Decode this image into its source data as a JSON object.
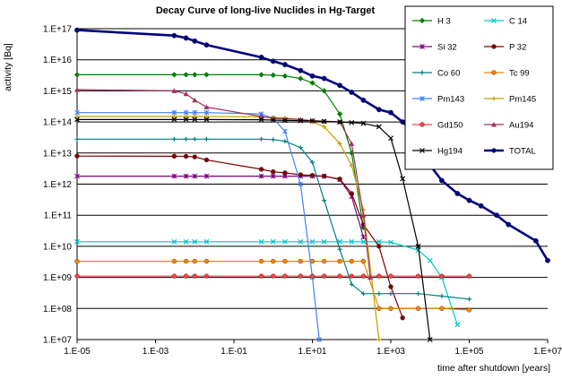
{
  "chart_data": {
    "type": "line",
    "title": "Decay Curve of long-live Nuclides in Hg-Target",
    "xlabel": "time after shutdown [years]",
    "ylabel": "activity [Bq]",
    "x_scale": "log",
    "y_scale": "log",
    "xlim": [
      1e-05,
      10000000.0
    ],
    "ylim": [
      10000000.0,
      1e+17
    ],
    "x_tick_labels": [
      "1.E-05",
      "1.E-03",
      "1.E-01",
      "1.E+01",
      "1.E+03",
      "1.E+05",
      "1.E+07"
    ],
    "y_tick_labels": [
      "1.E+07",
      "1.E+08",
      "1.E+09",
      "1.E+10",
      "1.E+11",
      "1.E+12",
      "1.E+13",
      "1.E+14",
      "1.E+15",
      "1.E+16",
      "1.E+17"
    ],
    "grid": "horizontal",
    "legend_position": "top-right",
    "series": [
      {
        "name": "H  3",
        "color": "#008000",
        "marker": "diamond",
        "x": [
          1e-05,
          0.003,
          0.006,
          0.01,
          0.02,
          0.5,
          1,
          2,
          5,
          10,
          20,
          50,
          100,
          200
        ],
        "y": [
          3300000000000000.0,
          3300000000000000.0,
          3300000000000000.0,
          3300000000000000.0,
          3300000000000000.0,
          3300000000000000.0,
          3200000000000000.0,
          3000000000000000.0,
          2500000000000000.0,
          1800000000000000.0,
          1000000000000000.0,
          180000000000000.0,
          10000000000000.0,
          40000000000.0
        ]
      },
      {
        "name": "C 14",
        "color": "#00c8c8",
        "marker": "x",
        "x": [
          1e-05,
          0.003,
          0.006,
          0.01,
          0.02,
          0.5,
          1,
          2,
          5,
          10,
          20,
          50,
          100,
          200,
          500,
          1000,
          5000,
          10000,
          20000,
          50000
        ],
        "y": [
          14000000000.0,
          14000000000.0,
          14000000000.0,
          14000000000.0,
          14000000000.0,
          14000000000.0,
          14000000000.0,
          14000000000.0,
          14000000000.0,
          14000000000.0,
          14000000000.0,
          14000000000.0,
          14000000000.0,
          14000000000.0,
          14000000000.0,
          13500000000.0,
          7500000000.0,
          3500000000.0,
          1000000000.0,
          30000000.0
        ]
      },
      {
        "name": "Si 32",
        "color": "#800080",
        "marker": "star",
        "x": [
          1e-05,
          0.003,
          0.006,
          0.01,
          0.02,
          0.5,
          1,
          2,
          5,
          10,
          20,
          50,
          100,
          200
        ],
        "y": [
          1800000000000.0,
          1800000000000.0,
          1800000000000.0,
          1800000000000.0,
          1800000000000.0,
          1800000000000.0,
          1800000000000.0,
          1800000000000.0,
          1800000000000.0,
          1800000000000.0,
          1800000000000.0,
          1400000000000.0,
          400000000000.0,
          20000000000.0
        ]
      },
      {
        "name": "P 32",
        "color": "#800000",
        "marker": "circle",
        "x": [
          1e-05,
          0.003,
          0.006,
          0.01,
          0.02,
          0.5,
          1,
          2,
          5,
          10,
          20,
          50,
          100,
          200,
          500,
          1000,
          2000
        ],
        "y": [
          8000000000000.0,
          7900000000000.0,
          7800000000000.0,
          7500000000000.0,
          6000000000000.0,
          3000000000000.0,
          2500000000000.0,
          2300000000000.0,
          2000000000000.0,
          1900000000000.0,
          1800000000000.0,
          1450000000000.0,
          500000000000.0,
          50000000000.0,
          10000000000.0,
          500000000.0,
          50000000.0
        ]
      },
      {
        "name": "Co 60",
        "color": "#008080",
        "marker": "plus",
        "x": [
          1e-05,
          0.003,
          0.006,
          0.01,
          0.02,
          0.5,
          1,
          2,
          5,
          10,
          20,
          50,
          100,
          200,
          500,
          1000,
          5000,
          20000,
          100000
        ],
        "y": [
          28000000000000.0,
          28000000000000.0,
          28000000000000.0,
          28000000000000.0,
          28000000000000.0,
          28000000000000.0,
          27000000000000.0,
          24000000000000.0,
          15000000000000.0,
          5000000000000.0,
          300000000000.0,
          8000000000.0,
          600000000.0,
          300000000.0,
          300000000.0,
          300000000.0,
          300000000.0,
          250000000.0,
          200000000.0
        ]
      },
      {
        "name": "Tc 99",
        "color": "#ff8000",
        "marker": "circle",
        "x": [
          1e-05,
          0.003,
          0.006,
          0.01,
          0.02,
          0.5,
          1,
          2,
          5,
          10,
          20,
          50,
          100,
          200,
          500,
          1000,
          5000,
          20000,
          100000
        ],
        "y": [
          3300000000.0,
          3300000000.0,
          3300000000.0,
          3300000000.0,
          3300000000.0,
          3300000000.0,
          3300000000.0,
          3300000000.0,
          3300000000.0,
          3300000000.0,
          3300000000.0,
          3300000000.0,
          3300000000.0,
          3300000000.0,
          100000000.0,
          100000000.0,
          100000000.0,
          100000000.0,
          90000000.0
        ]
      },
      {
        "name": "Pm143",
        "color": "#4080ff",
        "marker": "star",
        "x": [
          1e-05,
          0.003,
          0.006,
          0.01,
          0.02,
          0.5,
          1,
          2,
          5,
          10,
          15
        ],
        "y": [
          200000000000000.0,
          200000000000000.0,
          200000000000000.0,
          200000000000000.0,
          200000000000000.0,
          180000000000000.0,
          130000000000000.0,
          50000000000000.0,
          1000000000000.0,
          1000000000.0,
          10000000.0
        ]
      },
      {
        "name": "Pm145",
        "color": "#c0a000",
        "marker": "plus",
        "x": [
          1e-05,
          0.003,
          0.006,
          0.01,
          0.02,
          0.5,
          1,
          2,
          5,
          10,
          20,
          50,
          100,
          200,
          500
        ],
        "y": [
          150000000000000.0,
          150000000000000.0,
          150000000000000.0,
          150000000000000.0,
          150000000000000.0,
          145000000000000.0,
          140000000000000.0,
          135000000000000.0,
          120000000000000.0,
          100000000000000.0,
          70000000000000.0,
          20000000000000.0,
          4000000000000.0,
          150000000000.0,
          10000000.0
        ]
      },
      {
        "name": "Gd150",
        "color": "#ff4040",
        "marker": "circle",
        "x": [
          1e-05,
          0.003,
          0.006,
          0.01,
          0.02,
          0.5,
          1,
          2,
          5,
          10,
          20,
          50,
          100,
          200,
          500,
          1000,
          5000,
          20000,
          100000
        ],
        "y": [
          1100000000.0,
          1100000000.0,
          1100000000.0,
          1100000000.0,
          1100000000.0,
          1100000000.0,
          1100000000.0,
          1100000000.0,
          1100000000.0,
          1100000000.0,
          1100000000.0,
          1100000000.0,
          1100000000.0,
          1100000000.0,
          1100000000.0,
          1100000000.0,
          1100000000.0,
          1100000000.0,
          1100000000.0
        ]
      },
      {
        "name": "Au194",
        "color": "#a03060",
        "marker": "triangle",
        "x": [
          1e-05,
          0.003,
          0.006,
          0.01,
          0.02,
          0.5,
          1,
          2,
          5,
          10,
          20,
          50,
          100,
          200,
          300
        ],
        "y": [
          1100000000000000.0,
          1000000000000000.0,
          800000000000000.0,
          500000000000000.0,
          300000000000000.0,
          150000000000000.0,
          130000000000000.0,
          125000000000000.0,
          120000000000000.0,
          110000000000000.0,
          105000000000000.0,
          100000000000000.0,
          20000000000000.0,
          100000000000.0,
          1000000000.0
        ]
      },
      {
        "name": "Hg194",
        "color": "#000000",
        "marker": "x",
        "x": [
          1e-05,
          0.003,
          0.006,
          0.01,
          0.02,
          0.5,
          1,
          2,
          5,
          10,
          20,
          50,
          100,
          200,
          500,
          1000,
          2000,
          5000,
          10000
        ],
        "y": [
          120000000000000.0,
          120000000000000.0,
          120000000000000.0,
          120000000000000.0,
          120000000000000.0,
          118000000000000.0,
          115000000000000.0,
          112000000000000.0,
          110000000000000.0,
          108000000000000.0,
          105000000000000.0,
          100000000000000.0,
          95000000000000.0,
          90000000000000.0,
          70000000000000.0,
          30000000000000.0,
          1500000000000.0,
          10000000000.0,
          10000000.0
        ]
      },
      {
        "name": "TOTAL",
        "color": "#000080",
        "marker": "circle",
        "x": [
          1e-05,
          0.003,
          0.006,
          0.01,
          0.02,
          0.5,
          1,
          2,
          5,
          10,
          20,
          50,
          100,
          200,
          500,
          1000,
          2000,
          5000,
          10000,
          20000,
          50000,
          100000,
          200000,
          500000,
          1000000,
          5000000,
          10000000
        ],
        "y": [
          9e+16,
          6e+16,
          5e+16,
          4e+16,
          3e+16,
          1.2e+16,
          9000000000000000.0,
          7000000000000000.0,
          4500000000000000.0,
          3000000000000000.0,
          2500000000000000.0,
          1500000000000000.0,
          900000000000000.0,
          500000000000000.0,
          250000000000000.0,
          200000000000000.0,
          100000000000000.0,
          30000000000000.0,
          4000000000000.0,
          1300000000000.0,
          500000000000.0,
          300000000000.0,
          200000000000.0,
          100000000000.0,
          50000000000.0,
          15000000000.0,
          3500000000.0
        ]
      }
    ]
  }
}
